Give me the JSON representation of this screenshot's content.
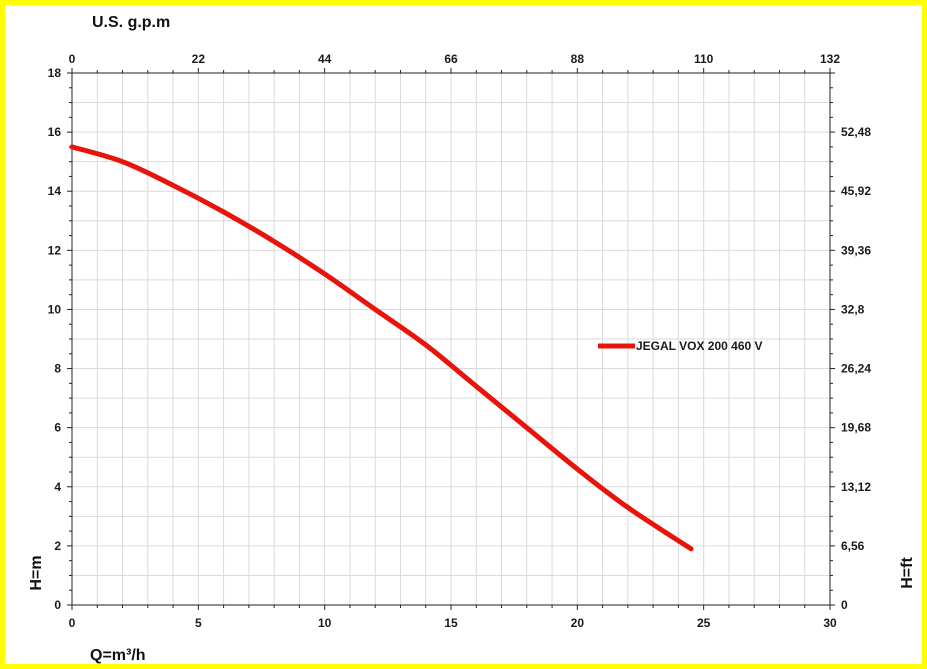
{
  "chart_data": {
    "type": "line",
    "xlabel": "Q=m³/h",
    "ylabel": "H=m",
    "x2label": "U.S. g.p.m",
    "y2label": "H=ft",
    "xlim": [
      0,
      30
    ],
    "ylim": [
      0,
      18
    ],
    "x_ticks": [
      "0",
      "5",
      "10",
      "15",
      "20",
      "25",
      "30"
    ],
    "y_ticks": [
      "0",
      "2",
      "4",
      "6",
      "8",
      "10",
      "12",
      "14",
      "16",
      "18"
    ],
    "x2_ticks": [
      "0",
      "22",
      "44",
      "66",
      "88",
      "110",
      "132"
    ],
    "y2_ticks": [
      "0",
      "6,56",
      "13,12",
      "19,68",
      "26,24",
      "32,8",
      "39,36",
      "45,92",
      "52,48"
    ],
    "grid": true,
    "legend_position": "right-middle",
    "series": [
      {
        "name": "JEGAL VOX 200  460 V",
        "color": "#e8140c",
        "x": [
          0,
          2,
          4,
          6,
          8,
          10,
          12,
          14,
          16,
          18,
          20,
          22,
          24.5
        ],
        "y": [
          15.5,
          15.0,
          14.2,
          13.3,
          12.3,
          11.2,
          10.0,
          8.8,
          7.4,
          6.0,
          4.6,
          3.3,
          1.9
        ]
      }
    ]
  }
}
